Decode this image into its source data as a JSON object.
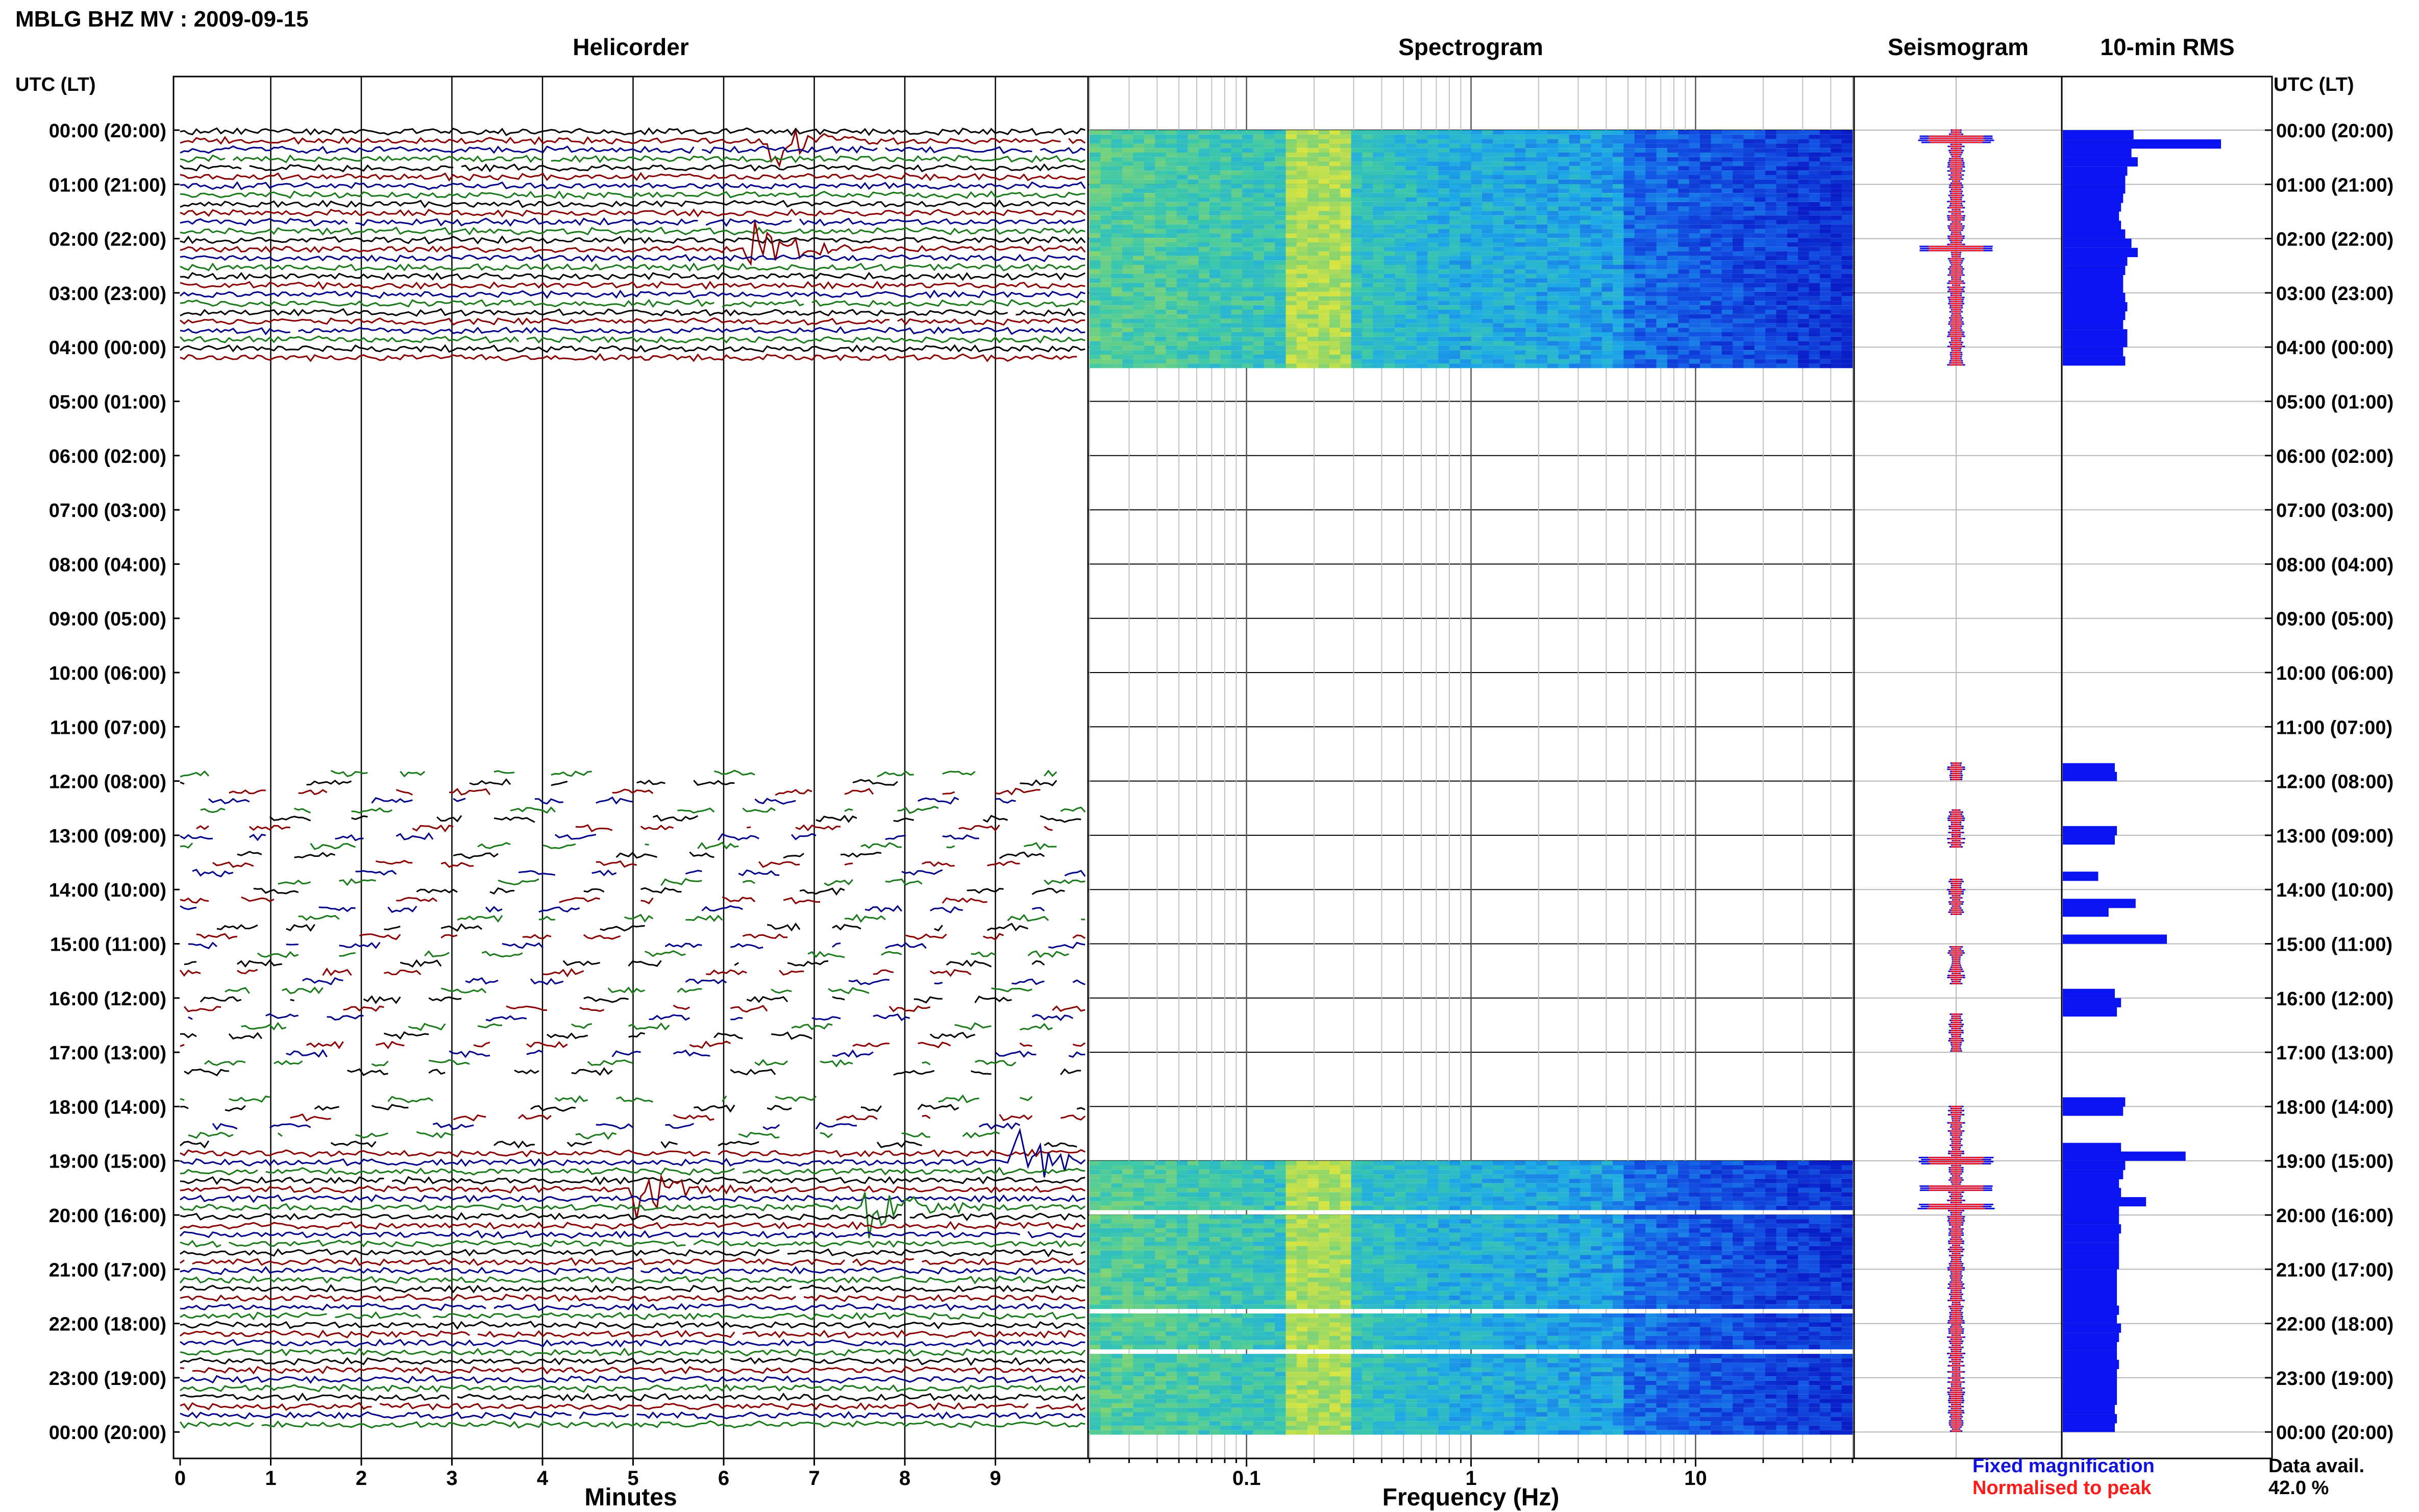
{
  "header": {
    "title": "MBLG BHZ MV : 2009-09-15"
  },
  "panels": {
    "helicorder": "Helicorder",
    "spectrogram": "Spectrogram",
    "seismogram": "Seismogram",
    "rms": "10-min RMS"
  },
  "axis": {
    "time_header": "UTC (LT)",
    "minutes_label": "Minutes",
    "frequency_label": "Frequency (Hz)"
  },
  "legend": {
    "fixed": "Fixed magnification",
    "normalised": "Normalised to peak",
    "fixed_color": "#1010e0",
    "normalised_color": "#ff1a1a"
  },
  "availability": {
    "label": "Data avail.",
    "value": "42.0 %"
  },
  "colors": {
    "trace_cycle": [
      "#000000",
      "#8b0000",
      "#00008b",
      "#1a7a1a"
    ],
    "spectrogram_low": "#0a1ec8",
    "spectrogram_high": "#e8e83a",
    "rms_bar": "#0a14f0"
  },
  "chart_data": [
    {
      "type": "line",
      "panel": "helicorder",
      "xlabel": "Minutes",
      "xlim": [
        0,
        10
      ],
      "xticks": [
        "0",
        "1",
        "2",
        "3",
        "4",
        "5",
        "6",
        "7",
        "8",
        "9"
      ],
      "time_rows": [
        "00:00 (20:00)",
        "01:00 (21:00)",
        "02:00 (22:00)",
        "03:00 (23:00)",
        "04:00 (00:00)",
        "05:00 (01:00)",
        "06:00 (02:00)",
        "07:00 (03:00)",
        "08:00 (04:00)",
        "09:00 (05:00)",
        "10:00 (06:00)",
        "11:00 (07:00)",
        "12:00 (08:00)",
        "13:00 (09:00)",
        "14:00 (10:00)",
        "15:00 (11:00)",
        "16:00 (12:00)",
        "17:00 (13:00)",
        "18:00 (14:00)",
        "19:00 (15:00)",
        "20:00 (16:00)",
        "21:00 (17:00)",
        "22:00 (18:00)",
        "23:00 (19:00)",
        "00:00 (20:00)"
      ],
      "data_blocks_hours": [
        [
          0,
          4.33
        ],
        [
          11.67,
          17.5
        ],
        [
          17.83,
          24
        ]
      ],
      "events": [
        {
          "hour": 0.17,
          "minute": 6.45
        },
        {
          "hour": 2.17,
          "minute": 6.3
        },
        {
          "hour": 19.0,
          "minute": 9.2
        },
        {
          "hour": 19.83,
          "minute": 7.6
        },
        {
          "hour": 19.5,
          "minute": 5.0
        }
      ]
    },
    {
      "type": "heatmap",
      "panel": "spectrogram",
      "xlabel": "Frequency (Hz)",
      "xscale": "log",
      "xlim": [
        0.02,
        50
      ],
      "xticks": [
        "0.1",
        "1",
        "10"
      ],
      "coverage_hours": [
        [
          0,
          4.33
        ],
        [
          19.0,
          24
        ]
      ],
      "peak_band_hz": [
        0.15,
        0.3
      ]
    },
    {
      "type": "line",
      "panel": "seismogram",
      "coverage_hours": [
        [
          0,
          4.33
        ],
        [
          11.67,
          17.5
        ],
        [
          18.0,
          24
        ]
      ]
    },
    {
      "type": "bar",
      "panel": "rms",
      "orientation": "horizontal",
      "bin_minutes": 10,
      "bars": [
        {
          "hour": 0.0,
          "value": 0.34
        },
        {
          "hour": 0.17,
          "value": 0.76
        },
        {
          "hour": 0.33,
          "value": 0.33
        },
        {
          "hour": 0.5,
          "value": 0.36
        },
        {
          "hour": 0.67,
          "value": 0.31
        },
        {
          "hour": 0.83,
          "value": 0.3
        },
        {
          "hour": 1.0,
          "value": 0.3
        },
        {
          "hour": 1.17,
          "value": 0.29
        },
        {
          "hour": 1.33,
          "value": 0.28
        },
        {
          "hour": 1.5,
          "value": 0.27
        },
        {
          "hour": 1.67,
          "value": 0.28
        },
        {
          "hour": 1.83,
          "value": 0.3
        },
        {
          "hour": 2.0,
          "value": 0.33
        },
        {
          "hour": 2.17,
          "value": 0.36
        },
        {
          "hour": 2.33,
          "value": 0.31
        },
        {
          "hour": 2.5,
          "value": 0.3
        },
        {
          "hour": 2.67,
          "value": 0.29
        },
        {
          "hour": 2.83,
          "value": 0.29
        },
        {
          "hour": 3.0,
          "value": 0.3
        },
        {
          "hour": 3.17,
          "value": 0.31
        },
        {
          "hour": 3.33,
          "value": 0.3
        },
        {
          "hour": 3.5,
          "value": 0.29
        },
        {
          "hour": 3.67,
          "value": 0.31
        },
        {
          "hour": 3.83,
          "value": 0.31
        },
        {
          "hour": 4.0,
          "value": 0.29
        },
        {
          "hour": 4.17,
          "value": 0.3
        },
        {
          "hour": 11.67,
          "value": 0.25
        },
        {
          "hour": 11.83,
          "value": 0.26
        },
        {
          "hour": 12.83,
          "value": 0.26
        },
        {
          "hour": 13.0,
          "value": 0.25
        },
        {
          "hour": 13.67,
          "value": 0.17
        },
        {
          "hour": 14.17,
          "value": 0.35
        },
        {
          "hour": 14.33,
          "value": 0.22
        },
        {
          "hour": 14.83,
          "value": 0.5
        },
        {
          "hour": 15.83,
          "value": 0.25
        },
        {
          "hour": 16.0,
          "value": 0.28
        },
        {
          "hour": 16.17,
          "value": 0.26
        },
        {
          "hour": 17.83,
          "value": 0.3
        },
        {
          "hour": 18.0,
          "value": 0.29
        },
        {
          "hour": 18.67,
          "value": 0.28
        },
        {
          "hour": 18.83,
          "value": 0.59
        },
        {
          "hour": 19.0,
          "value": 0.3
        },
        {
          "hour": 19.17,
          "value": 0.29
        },
        {
          "hour": 19.33,
          "value": 0.27
        },
        {
          "hour": 19.5,
          "value": 0.28
        },
        {
          "hour": 19.67,
          "value": 0.4
        },
        {
          "hour": 19.83,
          "value": 0.27
        },
        {
          "hour": 20.0,
          "value": 0.27
        },
        {
          "hour": 20.17,
          "value": 0.28
        },
        {
          "hour": 20.33,
          "value": 0.27
        },
        {
          "hour": 20.5,
          "value": 0.27
        },
        {
          "hour": 20.67,
          "value": 0.27
        },
        {
          "hour": 20.83,
          "value": 0.27
        },
        {
          "hour": 21.0,
          "value": 0.26
        },
        {
          "hour": 21.17,
          "value": 0.26
        },
        {
          "hour": 21.33,
          "value": 0.26
        },
        {
          "hour": 21.5,
          "value": 0.26
        },
        {
          "hour": 21.67,
          "value": 0.27
        },
        {
          "hour": 21.83,
          "value": 0.26
        },
        {
          "hour": 22.0,
          "value": 0.28
        },
        {
          "hour": 22.17,
          "value": 0.27
        },
        {
          "hour": 22.33,
          "value": 0.26
        },
        {
          "hour": 22.5,
          "value": 0.26
        },
        {
          "hour": 22.67,
          "value": 0.27
        },
        {
          "hour": 22.83,
          "value": 0.26
        },
        {
          "hour": 23.0,
          "value": 0.26
        },
        {
          "hour": 23.17,
          "value": 0.26
        },
        {
          "hour": 23.33,
          "value": 0.26
        },
        {
          "hour": 23.5,
          "value": 0.25
        },
        {
          "hour": 23.67,
          "value": 0.26
        },
        {
          "hour": 23.83,
          "value": 0.25
        }
      ]
    }
  ]
}
